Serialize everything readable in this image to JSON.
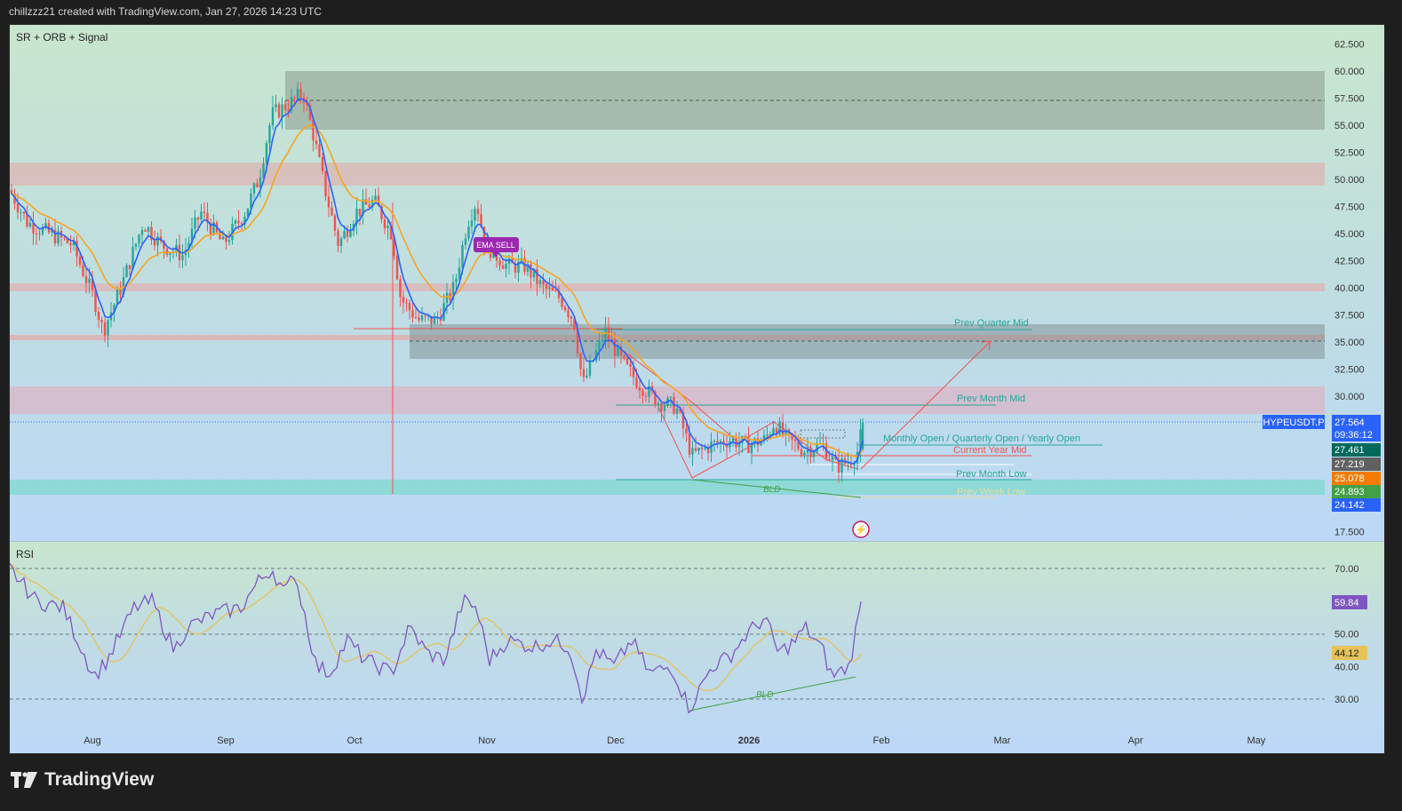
{
  "header": {
    "attribution": "chillzzz21 created with TradingView.com, Jan 27, 2026 14:23 UTC"
  },
  "main_pane": {
    "indicator_name": "SR + ORB + Signal",
    "symbol": "HYPEUSDT.P",
    "countdown": "09:36:12"
  },
  "rsi_pane": {
    "label": "RSI",
    "rsi_value": "59.84",
    "rsi_ma_value": "44.12"
  },
  "chart_data": {
    "type": "candlestick",
    "price_axis_ticks": [
      "62.500",
      "60.000",
      "57.500",
      "55.000",
      "52.500",
      "50.000",
      "47.500",
      "45.000",
      "42.500",
      "40.000",
      "37.500",
      "35.000",
      "32.500",
      "30.000",
      "17.500"
    ],
    "time_axis_ticks": [
      "Aug",
      "Sep",
      "Oct",
      "Nov",
      "Dec",
      "2026",
      "Feb",
      "Mar",
      "Apr",
      "May"
    ],
    "rsi_axis_ticks": [
      "70.00",
      "50.00",
      "40.00",
      "30.00"
    ],
    "price_tags": [
      {
        "text": "27.564",
        "color": "#2962ff"
      },
      {
        "text": "27.461",
        "color": "#00695c"
      },
      {
        "text": "27.219",
        "color": "#616161"
      },
      {
        "text": "25.078",
        "color": "#f57c00"
      },
      {
        "text": "24.893",
        "color": "#43a047"
      },
      {
        "text": "24.142",
        "color": "#2962ff"
      }
    ],
    "level_labels": [
      {
        "text": "Prev Quarter Mid",
        "color": "#26a69a"
      },
      {
        "text": "Prev Month Mid",
        "color": "#26a69a"
      },
      {
        "text": "Monthly Open / Quarterly Open / Yearly Open",
        "color": "#26a69a"
      },
      {
        "text": "Current Year Mid",
        "color": "#ef5350"
      },
      {
        "text": "Prev Month Low",
        "color": "#26a69a"
      },
      {
        "text": "Prev Week Low",
        "color": "#e0e0a0"
      }
    ],
    "signal_label": "EMA SELL",
    "pattern_labels": [
      "BLD",
      "BLD"
    ],
    "current_price": 27.564,
    "colors": {
      "up": "#26a69a",
      "down": "#ef5350",
      "ema_fast": "#2962ff",
      "ema_slow": "#f5a623",
      "rsi": "#7e57c2",
      "rsi_ma": "#e5c25a"
    }
  },
  "footer": {
    "brand": "TradingView"
  }
}
